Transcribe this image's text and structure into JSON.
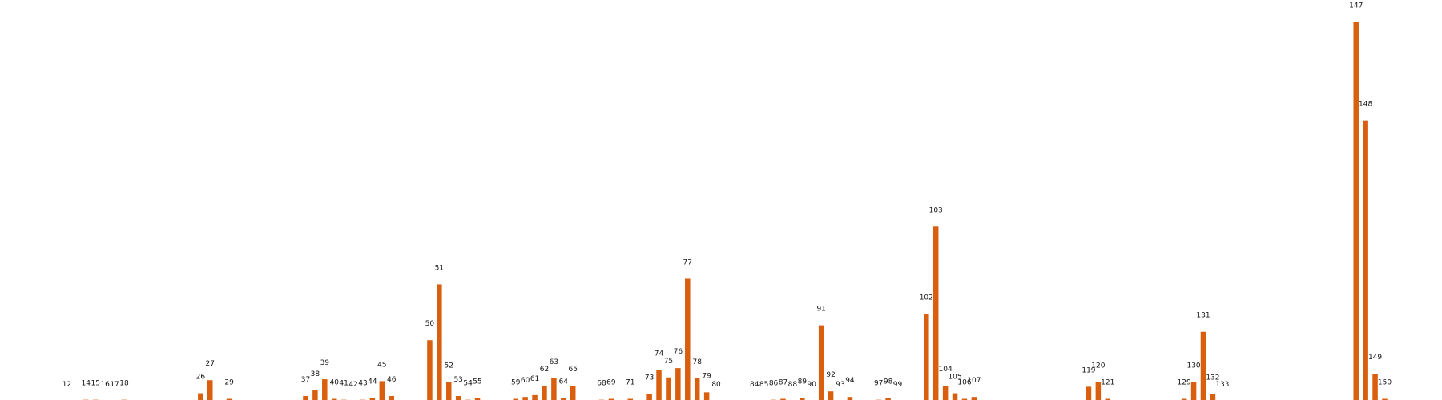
{
  "chart_data": {
    "type": "bar",
    "title": "",
    "xlabel": "",
    "ylabel": "",
    "grid": false,
    "bar_color": "#d95f0e",
    "xlim": [
      5,
      156
    ],
    "ylim": [
      0,
      20.5
    ],
    "series": [
      {
        "x": [
          12,
          14,
          15,
          16,
          17,
          18,
          26,
          27,
          29,
          37,
          38,
          39,
          40,
          41,
          42,
          43,
          44,
          45,
          46,
          50,
          51,
          52,
          53,
          54,
          55,
          59,
          60,
          61,
          62,
          63,
          64,
          65,
          68,
          69,
          71,
          73,
          74,
          75,
          76,
          77,
          78,
          79,
          80,
          84,
          85,
          86,
          87,
          88,
          89,
          90,
          91,
          92,
          93,
          94,
          97,
          98,
          99,
          102,
          103,
          104,
          105,
          106,
          107,
          119,
          120,
          121,
          129,
          130,
          131,
          132,
          133,
          147,
          148,
          149,
          150
        ],
        "values": [
          0.05,
          0.1,
          0.1,
          0.05,
          0.05,
          0.1,
          0.45,
          1.15,
          0.15,
          0.3,
          0.6,
          1.2,
          0.15,
          0.1,
          0.05,
          0.1,
          0.2,
          1.1,
          0.3,
          3.3,
          6.3,
          1.05,
          0.3,
          0.1,
          0.2,
          0.15,
          0.25,
          0.35,
          0.85,
          1.25,
          0.2,
          0.85,
          0.1,
          0.15,
          0.15,
          0.4,
          1.7,
          1.3,
          1.8,
          6.6,
          1.25,
          0.5,
          0.05,
          0.05,
          0.05,
          0.1,
          0.15,
          0.05,
          0.2,
          0.05,
          4.1,
          0.55,
          0.05,
          0.25,
          0.1,
          0.2,
          0.05,
          4.7,
          9.4,
          0.85,
          0.45,
          0.15,
          0.25,
          0.8,
          1.05,
          0.15,
          0.15,
          1.05,
          3.75,
          0.4,
          0.05,
          20.4,
          15.1,
          1.5,
          0.15
        ]
      }
    ]
  }
}
